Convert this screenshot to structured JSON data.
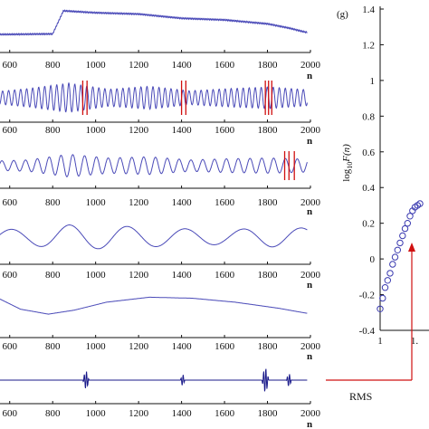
{
  "chart_data": [
    {
      "type": "line",
      "panel": "trend",
      "x_ticks": [
        600,
        800,
        1000,
        1200,
        1400,
        1600,
        1800,
        2000
      ],
      "xlabel": "n",
      "color": "#4a4ab8",
      "series": [
        {
          "x": [
            500,
            650,
            800,
            850,
            1000,
            1200,
            1400,
            1600,
            1800,
            1900,
            1980
          ],
          "y": [
            0.05,
            0.06,
            0.07,
            0.78,
            0.72,
            0.68,
            0.55,
            0.5,
            0.38,
            0.25,
            0.12
          ]
        }
      ],
      "ylim": [
        0,
        1
      ]
    },
    {
      "type": "line",
      "panel": "imf-high-frequency",
      "x_ticks": [
        600,
        800,
        1000,
        1200,
        1400,
        1600,
        1800,
        2000
      ],
      "xlabel": "n",
      "color": "#4a4ab8",
      "signal": {
        "period": 28,
        "envelope": [
          0.35,
          0.6,
          0.95,
          0.55,
          0.75,
          0.45,
          0.6,
          0.7,
          0.5
        ]
      },
      "markers_x": [
        510,
        940,
        960,
        1400,
        1420,
        1790,
        1805,
        1820
      ],
      "marker_color": "#d01010"
    },
    {
      "type": "line",
      "panel": "imf-mid-frequency",
      "x_ticks": [
        600,
        800,
        1000,
        1200,
        1400,
        1600,
        1800,
        2000
      ],
      "xlabel": "n",
      "color": "#4a4ab8",
      "signal": {
        "period": 55,
        "envelope": [
          0.35,
          0.45,
          0.9,
          0.6,
          0.7,
          0.45,
          0.55,
          0.6,
          0.5
        ]
      },
      "markers_x": [
        1880,
        1900,
        1925
      ],
      "marker_color": "#d01010"
    },
    {
      "type": "line",
      "panel": "imf-low-frequency",
      "x_ticks": [
        600,
        800,
        1000,
        1200,
        1400,
        1600,
        1800,
        2000
      ],
      "xlabel": "n",
      "color": "#4a4ab8",
      "signal": {
        "period": 270,
        "envelope": [
          0.45,
          0.5,
          0.75,
          0.7,
          0.6,
          0.5,
          0.45,
          0.6,
          0.55
        ]
      }
    },
    {
      "type": "line",
      "panel": "imf-very-low-frequency",
      "x_ticks": [
        600,
        800,
        1000,
        1200,
        1400,
        1600,
        1800,
        2000
      ],
      "xlabel": "n",
      "color": "#4a4ab8",
      "series": [
        {
          "x": [
            500,
            650,
            780,
            900,
            1050,
            1250,
            1450,
            1650,
            1850,
            1980
          ],
          "y": [
            0.5,
            -0.3,
            -0.55,
            -0.35,
            0.05,
            0.3,
            0.25,
            0.05,
            -0.25,
            -0.5
          ]
        }
      ],
      "ylim": [
        -1,
        1
      ]
    },
    {
      "type": "line",
      "panel": "bursts",
      "x_ticks": [
        600,
        800,
        1000,
        1200,
        1400,
        1600,
        1800,
        2000
      ],
      "xlabel": "n",
      "color": "#1a1a8a",
      "bursts": [
        {
          "x": 955,
          "amp": 0.7,
          "width": 14
        },
        {
          "x": 1405,
          "amp": 0.45,
          "width": 10
        },
        {
          "x": 1790,
          "amp": 0.95,
          "width": 16
        },
        {
          "x": 1900,
          "amp": 0.5,
          "width": 12
        }
      ]
    },
    {
      "type": "scatter",
      "panel": "g",
      "label": "(g)",
      "ylabel": "log10F(n)",
      "y_ticks": [
        1.4,
        1.2,
        1,
        0.8,
        0.6,
        0.4,
        0.2,
        0,
        -0.2,
        -0.4
      ],
      "ylim": [
        -0.4,
        1.4
      ],
      "x_ticks_visible": [
        "1",
        "1."
      ],
      "x": [
        1.0,
        1.05,
        1.1,
        1.15,
        1.2,
        1.25,
        1.3,
        1.35,
        1.4,
        1.45,
        1.5,
        1.55,
        1.6,
        1.65,
        1.7,
        1.75,
        1.8
      ],
      "y": [
        -0.28,
        -0.22,
        -0.16,
        -0.12,
        -0.08,
        -0.03,
        0.01,
        0.05,
        0.09,
        0.13,
        0.17,
        0.2,
        0.24,
        0.27,
        0.29,
        0.3,
        0.31
      ],
      "marker_color": "#3a3ab0",
      "annotation_text": "RMS",
      "annotation_color": "#d01010"
    }
  ]
}
